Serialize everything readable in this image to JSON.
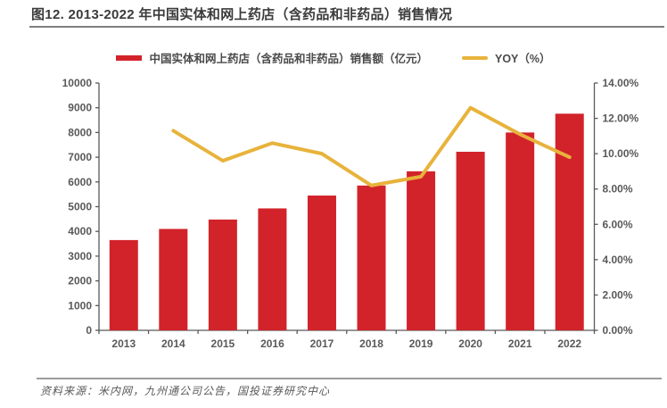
{
  "header": {
    "title": "图12. 2013-2022 年中国实体和网上药店（含药品和非药品）销售情况"
  },
  "legend": [
    {
      "label": "中国实体和网上药店（含药品和非药品）销售额（亿元）",
      "marker": "bar-swatch",
      "color": "#d2232a"
    },
    {
      "label": "YOY（%）",
      "marker": "line-swatch",
      "color": "#e8b33c"
    }
  ],
  "chart_data": {
    "type": "bar",
    "subtype": "bar+line combo, dual axis",
    "categories": [
      "2013",
      "2014",
      "2015",
      "2016",
      "2017",
      "2018",
      "2019",
      "2020",
      "2021",
      "2022"
    ],
    "series": [
      {
        "name": "中国实体和网上药店（含药品和非药品）销售额（亿元）",
        "type": "bar",
        "axis": "left",
        "color": "#d2232a",
        "values": [
          3650,
          4100,
          4480,
          4930,
          5450,
          5855,
          6430,
          7220,
          8000,
          8760
        ]
      },
      {
        "name": "YOY（%）",
        "type": "line",
        "axis": "right",
        "color": "#e8b33c",
        "values": [
          null,
          11.3,
          9.6,
          10.6,
          10.0,
          8.2,
          8.7,
          12.6,
          11.1,
          9.8
        ]
      }
    ],
    "left_axis": {
      "min": 0,
      "max": 10000,
      "step": 1000,
      "tick_labels": [
        "0",
        "1000",
        "2000",
        "3000",
        "4000",
        "5000",
        "6000",
        "7000",
        "8000",
        "9000",
        "10000"
      ]
    },
    "right_axis": {
      "min": 0,
      "max": 14,
      "step": 2,
      "tick_labels": [
        "0.00%",
        "2.00%",
        "4.00%",
        "6.00%",
        "8.00%",
        "10.00%",
        "12.00%",
        "14.00%"
      ]
    },
    "grid": false,
    "legend_position": "top",
    "axis_color": "#595959",
    "label_color": "#595959"
  },
  "footer": {
    "source": "资料来源：米内网，九州通公司公告，国投证券研究中心"
  }
}
